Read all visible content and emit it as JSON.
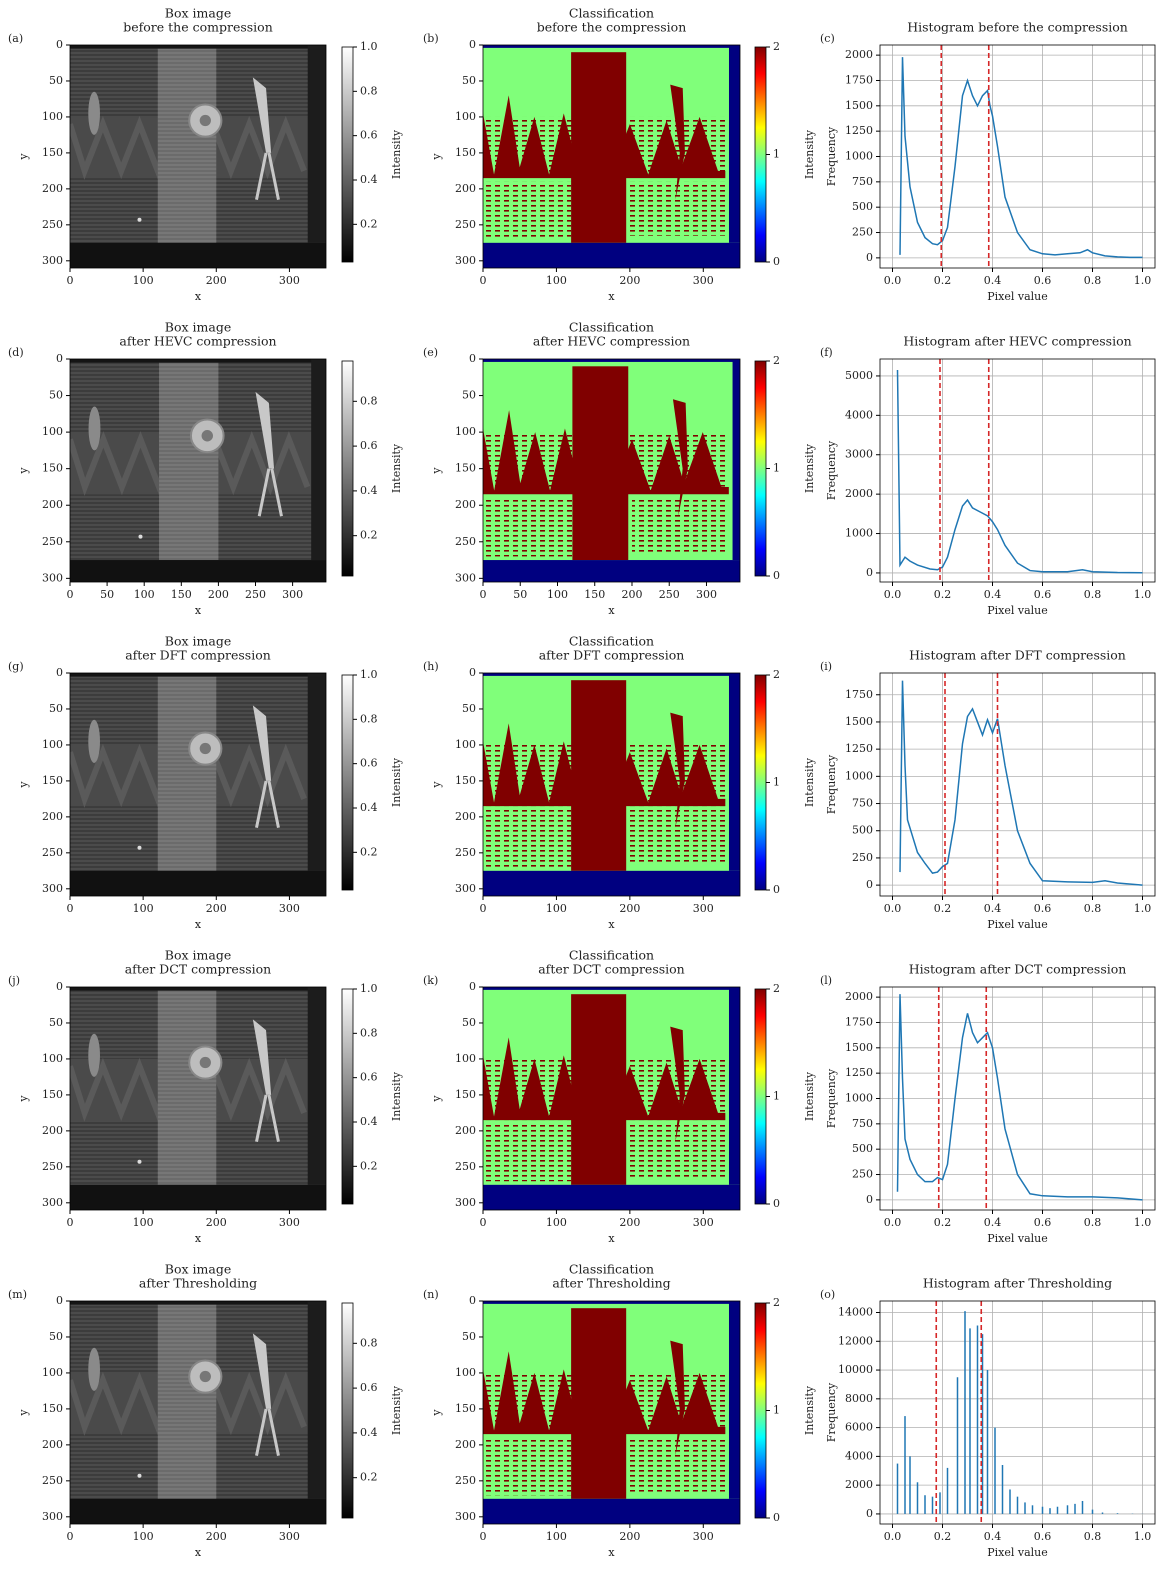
{
  "chart_data": [
    {
      "type": "image",
      "label": "(a)",
      "title": [
        "Box image",
        "before the compression"
      ],
      "xlabel": "x",
      "ylabel": "y",
      "colormap": "gray",
      "xlim": [
        0,
        350
      ],
      "ylim": [
        310,
        0
      ],
      "xticks": [
        0,
        100,
        200,
        300
      ],
      "yticks": [
        0,
        50,
        100,
        150,
        200,
        250,
        300
      ],
      "colorbar": {
        "label": "Intensity",
        "lim": [
          0.03,
          1
        ],
        "ticks": [
          0.2,
          0.4,
          0.6,
          0.8,
          {
            "value": 1,
            "label": "1.0"
          }
        ]
      }
    },
    {
      "type": "image",
      "label": "(b)",
      "title": [
        "Classification",
        "before the compression"
      ],
      "xlabel": "x",
      "ylabel": "y",
      "colormap": "jet",
      "xlim": [
        0,
        350
      ],
      "ylim": [
        310,
        0
      ],
      "xticks": [
        0,
        100,
        200,
        300
      ],
      "yticks": [
        0,
        50,
        100,
        150,
        200,
        250,
        300
      ],
      "colorbar": {
        "label": "Intensity",
        "lim": [
          0,
          2
        ],
        "ticks": [
          0,
          1,
          2
        ]
      }
    },
    {
      "type": "line",
      "label": "(c)",
      "title": "Histogram before the compression",
      "xlabel": "Pixel value",
      "ylabel": "Frequency",
      "grid": true,
      "color": "#1f77b4",
      "threshold_color": "#d62728",
      "xlim": [
        -0.05,
        1.05
      ],
      "ylim": [
        -100,
        2100
      ],
      "xticks": [
        {
          "value": 0,
          "label": "0.0"
        },
        0.2,
        0.4,
        0.6,
        0.8,
        {
          "value": 1,
          "label": "1.0"
        }
      ],
      "yticks": [
        0,
        250,
        500,
        750,
        1000,
        1250,
        1500,
        1750,
        2000
      ],
      "thresholds": [
        0.195,
        0.385
      ],
      "x": [
        0.03,
        0.04,
        0.05,
        0.07,
        0.1,
        0.13,
        0.16,
        0.18,
        0.2,
        0.22,
        0.25,
        0.28,
        0.3,
        0.32,
        0.34,
        0.36,
        0.38,
        0.39,
        0.4,
        0.42,
        0.45,
        0.5,
        0.55,
        0.6,
        0.65,
        0.7,
        0.75,
        0.78,
        0.8,
        0.85,
        0.9,
        0.95,
        1.0
      ],
      "values": [
        30,
        1980,
        1200,
        700,
        350,
        200,
        140,
        130,
        170,
        300,
        900,
        1600,
        1750,
        1600,
        1500,
        1600,
        1650,
        1500,
        1400,
        1100,
        600,
        250,
        80,
        40,
        30,
        40,
        50,
        80,
        50,
        20,
        10,
        5,
        5
      ]
    },
    {
      "type": "image",
      "label": "(d)",
      "title": [
        "Box image",
        "after HEVC compression"
      ],
      "xlabel": "x",
      "ylabel": "y",
      "colormap": "gray",
      "xlim": [
        0,
        345
      ],
      "ylim": [
        305,
        0
      ],
      "xticks": [
        0,
        50,
        100,
        150,
        200,
        250,
        300
      ],
      "yticks": [
        0,
        50,
        100,
        150,
        200,
        250,
        300
      ],
      "colorbar": {
        "label": "Intensity",
        "lim": [
          0.02,
          0.98
        ],
        "ticks": [
          0.2,
          0.4,
          0.6,
          0.8
        ]
      }
    },
    {
      "type": "image",
      "label": "(e)",
      "title": [
        "Classification",
        "after HEVC compression"
      ],
      "xlabel": "x",
      "ylabel": "y",
      "colormap": "jet",
      "xlim": [
        0,
        345
      ],
      "ylim": [
        305,
        0
      ],
      "xticks": [
        0,
        50,
        100,
        150,
        200,
        250,
        300
      ],
      "yticks": [
        0,
        50,
        100,
        150,
        200,
        250,
        300
      ],
      "colorbar": {
        "label": "Intensity",
        "lim": [
          0,
          2
        ],
        "ticks": [
          0,
          1,
          2
        ]
      }
    },
    {
      "type": "line",
      "label": "(f)",
      "title": "Histogram after HEVC compression",
      "xlabel": "Pixel value",
      "ylabel": "Frequency",
      "grid": true,
      "color": "#1f77b4",
      "threshold_color": "#d62728",
      "xlim": [
        -0.05,
        1.05
      ],
      "ylim": [
        -230,
        5430
      ],
      "xticks": [
        {
          "value": 0,
          "label": "0.0"
        },
        0.2,
        0.4,
        0.6,
        0.8,
        {
          "value": 1,
          "label": "1.0"
        }
      ],
      "yticks": [
        0,
        1000,
        2000,
        3000,
        4000,
        5000
      ],
      "thresholds": [
        0.19,
        0.385
      ],
      "x": [
        0.02,
        0.03,
        0.04,
        0.05,
        0.07,
        0.1,
        0.15,
        0.18,
        0.2,
        0.22,
        0.25,
        0.28,
        0.3,
        0.32,
        0.35,
        0.38,
        0.4,
        0.42,
        0.45,
        0.5,
        0.55,
        0.6,
        0.7,
        0.76,
        0.8,
        0.9,
        1.0
      ],
      "values": [
        5150,
        200,
        300,
        400,
        300,
        200,
        100,
        80,
        150,
        400,
        1100,
        1700,
        1850,
        1650,
        1550,
        1450,
        1300,
        1100,
        700,
        250,
        60,
        30,
        30,
        80,
        30,
        10,
        5
      ]
    },
    {
      "type": "image",
      "label": "(g)",
      "title": [
        "Box image",
        "after DFT compression"
      ],
      "xlabel": "x",
      "ylabel": "y",
      "colormap": "gray",
      "xlim": [
        0,
        350
      ],
      "ylim": [
        310,
        0
      ],
      "xticks": [
        0,
        100,
        200,
        300
      ],
      "yticks": [
        0,
        50,
        100,
        150,
        200,
        250,
        300
      ],
      "colorbar": {
        "label": "Intensity",
        "lim": [
          0.03,
          1
        ],
        "ticks": [
          0.2,
          0.4,
          0.6,
          0.8,
          {
            "value": 1,
            "label": "1.0"
          }
        ]
      }
    },
    {
      "type": "image",
      "label": "(h)",
      "title": [
        "Classification",
        "after DFT compression"
      ],
      "xlabel": "x",
      "ylabel": "y",
      "colormap": "jet",
      "xlim": [
        0,
        350
      ],
      "ylim": [
        310,
        0
      ],
      "xticks": [
        0,
        100,
        200,
        300
      ],
      "yticks": [
        0,
        50,
        100,
        150,
        200,
        250,
        300
      ],
      "colorbar": {
        "label": "Intensity",
        "lim": [
          0,
          2
        ],
        "ticks": [
          0,
          1,
          2
        ]
      }
    },
    {
      "type": "line",
      "label": "(i)",
      "title": "Histogram after DFT compression",
      "xlabel": "Pixel value",
      "ylabel": "Frequency",
      "grid": true,
      "color": "#1f77b4",
      "threshold_color": "#d62728",
      "xlim": [
        -0.05,
        1.05
      ],
      "ylim": [
        -100,
        1950
      ],
      "xticks": [
        {
          "value": 0,
          "label": "0.0"
        },
        0.2,
        0.4,
        0.6,
        0.8,
        {
          "value": 1,
          "label": "1.0"
        }
      ],
      "yticks": [
        0,
        250,
        500,
        750,
        1000,
        1250,
        1500,
        1750
      ],
      "thresholds": [
        0.21,
        0.42
      ],
      "x": [
        0.03,
        0.04,
        0.05,
        0.06,
        0.08,
        0.1,
        0.13,
        0.16,
        0.18,
        0.2,
        0.22,
        0.25,
        0.28,
        0.3,
        0.32,
        0.34,
        0.36,
        0.38,
        0.4,
        0.42,
        0.45,
        0.5,
        0.55,
        0.6,
        0.7,
        0.8,
        0.85,
        0.9,
        1.0
      ],
      "values": [
        120,
        1880,
        1100,
        600,
        450,
        300,
        200,
        110,
        120,
        170,
        200,
        600,
        1300,
        1550,
        1620,
        1500,
        1380,
        1520,
        1400,
        1530,
        1100,
        500,
        200,
        40,
        30,
        25,
        40,
        20,
        0
      ]
    },
    {
      "type": "image",
      "label": "(j)",
      "title": [
        "Box image",
        "after DCT compression"
      ],
      "xlabel": "x",
      "ylabel": "y",
      "colormap": "gray",
      "xlim": [
        0,
        350
      ],
      "ylim": [
        310,
        0
      ],
      "xticks": [
        0,
        100,
        200,
        300
      ],
      "yticks": [
        0,
        50,
        100,
        150,
        200,
        250,
        300
      ],
      "colorbar": {
        "label": "Intensity",
        "lim": [
          0.03,
          1
        ],
        "ticks": [
          0.2,
          0.4,
          0.6,
          0.8,
          {
            "value": 1,
            "label": "1.0"
          }
        ]
      }
    },
    {
      "type": "image",
      "label": "(k)",
      "title": [
        "Classification",
        "after DCT compression"
      ],
      "xlabel": "x",
      "ylabel": "y",
      "colormap": "jet",
      "xlim": [
        0,
        350
      ],
      "ylim": [
        310,
        0
      ],
      "xticks": [
        0,
        100,
        200,
        300
      ],
      "yticks": [
        0,
        50,
        100,
        150,
        200,
        250,
        300
      ],
      "colorbar": {
        "label": "Intensity",
        "lim": [
          0,
          2
        ],
        "ticks": [
          0,
          1,
          2
        ]
      }
    },
    {
      "type": "line",
      "label": "(l)",
      "title": "Histogram after DCT compression",
      "xlabel": "Pixel value",
      "ylabel": "Frequency",
      "grid": true,
      "color": "#1f77b4",
      "threshold_color": "#d62728",
      "xlim": [
        -0.05,
        1.05
      ],
      "ylim": [
        -100,
        2100
      ],
      "xticks": [
        {
          "value": 0,
          "label": "0.0"
        },
        0.2,
        0.4,
        0.6,
        0.8,
        {
          "value": 1,
          "label": "1.0"
        }
      ],
      "yticks": [
        0,
        250,
        500,
        750,
        1000,
        1250,
        1500,
        1750,
        2000
      ],
      "thresholds": [
        0.185,
        0.375
      ],
      "x": [
        0.02,
        0.03,
        0.04,
        0.05,
        0.07,
        0.1,
        0.13,
        0.16,
        0.18,
        0.2,
        0.22,
        0.25,
        0.28,
        0.3,
        0.32,
        0.34,
        0.36,
        0.38,
        0.4,
        0.42,
        0.45,
        0.5,
        0.55,
        0.6,
        0.7,
        0.8,
        0.9,
        1.0
      ],
      "values": [
        80,
        2030,
        1200,
        600,
        400,
        250,
        180,
        180,
        220,
        200,
        350,
        1000,
        1600,
        1840,
        1650,
        1550,
        1600,
        1650,
        1500,
        1200,
        700,
        250,
        60,
        40,
        30,
        30,
        20,
        0
      ]
    },
    {
      "type": "image",
      "label": "(m)",
      "title": [
        "Box image",
        "after Thresholding"
      ],
      "xlabel": "x",
      "ylabel": "y",
      "colormap": "gray",
      "xlim": [
        0,
        350
      ],
      "ylim": [
        310,
        0
      ],
      "xticks": [
        0,
        100,
        200,
        300
      ],
      "yticks": [
        0,
        50,
        100,
        150,
        200,
        250,
        300
      ],
      "colorbar": {
        "label": "Intensity",
        "lim": [
          0.02,
          0.98
        ],
        "ticks": [
          0.2,
          0.4,
          0.6,
          0.8
        ]
      }
    },
    {
      "type": "image",
      "label": "(n)",
      "title": [
        "Classification",
        "after Thresholding"
      ],
      "xlabel": "x",
      "ylabel": "y",
      "colormap": "jet",
      "xlim": [
        0,
        350
      ],
      "ylim": [
        310,
        0
      ],
      "xticks": [
        0,
        100,
        200,
        300
      ],
      "yticks": [
        0,
        50,
        100,
        150,
        200,
        250,
        300
      ],
      "colorbar": {
        "label": "Intensity",
        "lim": [
          0,
          2
        ],
        "ticks": [
          0,
          1,
          2
        ]
      }
    },
    {
      "type": "stem",
      "label": "(o)",
      "title": "Histogram after Thresholding",
      "xlabel": "Pixel value",
      "ylabel": "Frequency",
      "grid": true,
      "color": "#1f77b4",
      "threshold_color": "#d62728",
      "xlim": [
        -0.05,
        1.05
      ],
      "ylim": [
        -700,
        14800
      ],
      "xticks": [
        {
          "value": 0,
          "label": "0.0"
        },
        0.2,
        0.4,
        0.6,
        0.8,
        {
          "value": 1,
          "label": "1.0"
        }
      ],
      "yticks": [
        0,
        2000,
        4000,
        6000,
        8000,
        10000,
        12000,
        14000
      ],
      "thresholds": [
        0.175,
        0.355
      ],
      "x": [
        0.02,
        0.05,
        0.07,
        0.1,
        0.13,
        0.16,
        0.19,
        0.22,
        0.26,
        0.29,
        0.31,
        0.34,
        0.36,
        0.38,
        0.41,
        0.44,
        0.47,
        0.5,
        0.53,
        0.56,
        0.6,
        0.63,
        0.66,
        0.7,
        0.73,
        0.76,
        0.8,
        0.84,
        0.9,
        0.96,
        1.0
      ],
      "values": [
        3500,
        6800,
        4000,
        2200,
        1300,
        1200,
        1500,
        3200,
        9500,
        14100,
        12900,
        13100,
        12500,
        10000,
        6000,
        3400,
        1700,
        1200,
        800,
        600,
        500,
        400,
        500,
        600,
        700,
        900,
        300,
        100,
        50,
        20,
        10
      ]
    }
  ]
}
